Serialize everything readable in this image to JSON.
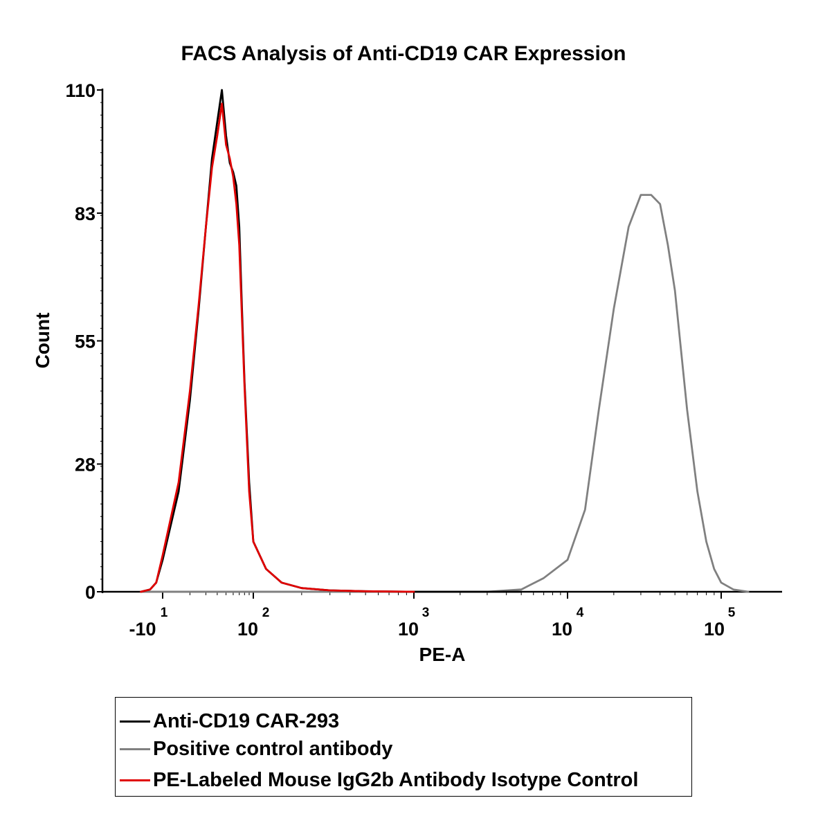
{
  "chart_data": {
    "type": "line",
    "title": "FACS Analysis of Anti-CD19 CAR Expression",
    "xlabel": "PE-A",
    "ylabel": "Count",
    "x_scale": "log",
    "xlim": [
      -10,
      150000
    ],
    "ylim": [
      0,
      110
    ],
    "y_ticks": [
      0,
      28,
      55,
      83,
      110
    ],
    "x_ticks": [
      {
        "value": -10,
        "label": "-10",
        "sup": "1"
      },
      {
        "value": 100,
        "label": "10",
        "sup": "2"
      },
      {
        "value": 1000,
        "label": "10",
        "sup": "3"
      },
      {
        "value": 10000,
        "label": "10",
        "sup": "4"
      },
      {
        "value": 100000,
        "label": "10",
        "sup": "5"
      }
    ],
    "series": [
      {
        "name": "Anti-CD19 CAR-293",
        "color": "#000000",
        "x": [
          3,
          5,
          7,
          10,
          15,
          20,
          25,
          30,
          35,
          40,
          45,
          50,
          55,
          60,
          65,
          70,
          75,
          80,
          90,
          100,
          120,
          150,
          200,
          300,
          500,
          1000,
          2000,
          5000
        ],
        "y": [
          0,
          0.5,
          2,
          7,
          22,
          42,
          62,
          80,
          95,
          103,
          110,
          100,
          94,
          92,
          89,
          80,
          62,
          46,
          24,
          11,
          5,
          2,
          0.8,
          0.3,
          0.1,
          0,
          0,
          0
        ]
      },
      {
        "name": "Positive control antibody",
        "color": "#808080",
        "x": [
          3,
          100,
          1000,
          3000,
          5000,
          7000,
          10000,
          13000,
          16000,
          20000,
          25000,
          30000,
          35000,
          40000,
          45000,
          50000,
          60000,
          70000,
          80000,
          90000,
          100000,
          120000,
          150000
        ],
        "y": [
          0,
          0,
          0,
          0,
          0.5,
          3,
          7,
          18,
          40,
          62,
          80,
          87,
          87,
          85,
          76,
          66,
          40,
          22,
          11,
          5,
          2,
          0.5,
          0
        ]
      },
      {
        "name": "PE-Labeled Mouse IgG2b Antibody Isotype Control",
        "color": "#e00000",
        "x": [
          3,
          5,
          7,
          10,
          15,
          20,
          25,
          30,
          35,
          40,
          45,
          50,
          55,
          60,
          65,
          70,
          75,
          80,
          90,
          100,
          120,
          150,
          200,
          300,
          500,
          1000
        ],
        "y": [
          0,
          0.5,
          2,
          8,
          24,
          44,
          63,
          80,
          93,
          100,
          107,
          98,
          95,
          91,
          85,
          76,
          60,
          45,
          22,
          11,
          5,
          2,
          0.8,
          0.3,
          0.1,
          0
        ]
      }
    ],
    "legend_position": "bottom"
  }
}
